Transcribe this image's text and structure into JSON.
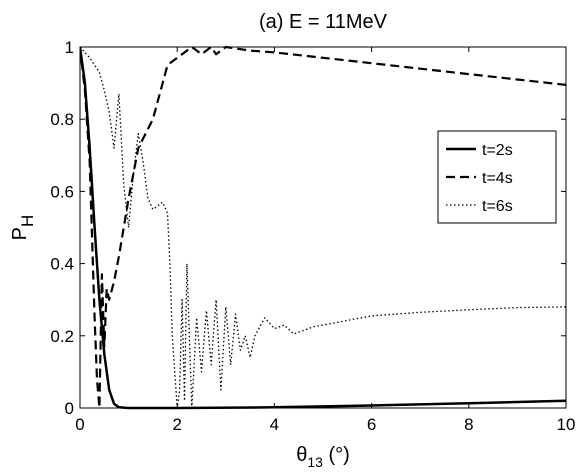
{
  "chart_data": {
    "type": "line",
    "title": "(a) E = 11MeV",
    "ylabel_main": "P",
    "ylabel_sub": "H",
    "xlabel_main": "θ",
    "xlabel_sub": "13",
    "xlabel_suffix": " (°)",
    "xlim": [
      0,
      10
    ],
    "ylim": [
      0,
      1
    ],
    "xticks": [
      "0",
      "2",
      "4",
      "6",
      "8",
      "10"
    ],
    "yticks": [
      "0",
      "0.2",
      "0.4",
      "0.6",
      "0.8",
      "1"
    ],
    "grid": false,
    "legend_position": "right, upper-middle",
    "series": [
      {
        "name": "t=2s",
        "style": "solid",
        "points": [
          [
            0,
            1.0
          ],
          [
            0.1,
            0.9
          ],
          [
            0.2,
            0.72
          ],
          [
            0.3,
            0.5
          ],
          [
            0.4,
            0.3
          ],
          [
            0.5,
            0.15
          ],
          [
            0.6,
            0.05
          ],
          [
            0.7,
            0.012
          ],
          [
            0.8,
            0.002
          ],
          [
            1.0,
            0.0
          ],
          [
            2,
            0.0
          ],
          [
            4,
            0.002
          ],
          [
            6,
            0.007
          ],
          [
            8,
            0.013
          ],
          [
            10,
            0.02
          ]
        ]
      },
      {
        "name": "t=4s",
        "style": "dashed",
        "points": [
          [
            0,
            1.0
          ],
          [
            0.1,
            0.88
          ],
          [
            0.2,
            0.68
          ],
          [
            0.3,
            0.25
          ],
          [
            0.35,
            0.08
          ],
          [
            0.4,
            0.0
          ],
          [
            0.45,
            0.37
          ],
          [
            0.5,
            0.17
          ],
          [
            0.55,
            0.33
          ],
          [
            0.6,
            0.3
          ],
          [
            0.7,
            0.35
          ],
          [
            0.8,
            0.42
          ],
          [
            1.0,
            0.58
          ],
          [
            1.2,
            0.72
          ],
          [
            1.5,
            0.8
          ],
          [
            1.8,
            0.95
          ],
          [
            2.1,
            0.98
          ],
          [
            2.3,
            1.0
          ],
          [
            2.5,
            0.98
          ],
          [
            2.7,
            1.0
          ],
          [
            2.8,
            0.98
          ],
          [
            3.0,
            1.0
          ],
          [
            3.5,
            0.99
          ],
          [
            4,
            0.985
          ],
          [
            5,
            0.97
          ],
          [
            6,
            0.955
          ],
          [
            7,
            0.94
          ],
          [
            8,
            0.925
          ],
          [
            9,
            0.91
          ],
          [
            10,
            0.895
          ]
        ]
      },
      {
        "name": "t=6s",
        "style": "dotted",
        "points": [
          [
            0,
            1.0
          ],
          [
            0.2,
            0.97
          ],
          [
            0.3,
            0.95
          ],
          [
            0.4,
            0.93
          ],
          [
            0.5,
            0.88
          ],
          [
            0.6,
            0.82
          ],
          [
            0.7,
            0.72
          ],
          [
            0.8,
            0.87
          ],
          [
            0.9,
            0.62
          ],
          [
            1.0,
            0.5
          ],
          [
            1.1,
            0.65
          ],
          [
            1.2,
            0.76
          ],
          [
            1.3,
            0.68
          ],
          [
            1.4,
            0.58
          ],
          [
            1.5,
            0.55
          ],
          [
            1.6,
            0.56
          ],
          [
            1.7,
            0.57
          ],
          [
            1.8,
            0.54
          ],
          [
            1.85,
            0.4
          ],
          [
            1.9,
            0.2
          ],
          [
            2.0,
            0.0
          ],
          [
            2.05,
            0.05
          ],
          [
            2.1,
            0.3
          ],
          [
            2.15,
            0.02
          ],
          [
            2.2,
            0.4
          ],
          [
            2.3,
            0.0
          ],
          [
            2.4,
            0.25
          ],
          [
            2.5,
            0.1
          ],
          [
            2.6,
            0.27
          ],
          [
            2.7,
            0.12
          ],
          [
            2.8,
            0.3
          ],
          [
            2.9,
            0.05
          ],
          [
            3.0,
            0.28
          ],
          [
            3.1,
            0.12
          ],
          [
            3.2,
            0.26
          ],
          [
            3.3,
            0.16
          ],
          [
            3.4,
            0.2
          ],
          [
            3.5,
            0.14
          ],
          [
            3.6,
            0.2
          ],
          [
            3.8,
            0.25
          ],
          [
            4.0,
            0.22
          ],
          [
            4.2,
            0.23
          ],
          [
            4.4,
            0.205
          ],
          [
            4.6,
            0.215
          ],
          [
            4.8,
            0.225
          ],
          [
            5,
            0.23
          ],
          [
            6,
            0.255
          ],
          [
            7,
            0.265
          ],
          [
            8,
            0.272
          ],
          [
            9,
            0.278
          ],
          [
            10,
            0.28
          ]
        ]
      }
    ]
  }
}
